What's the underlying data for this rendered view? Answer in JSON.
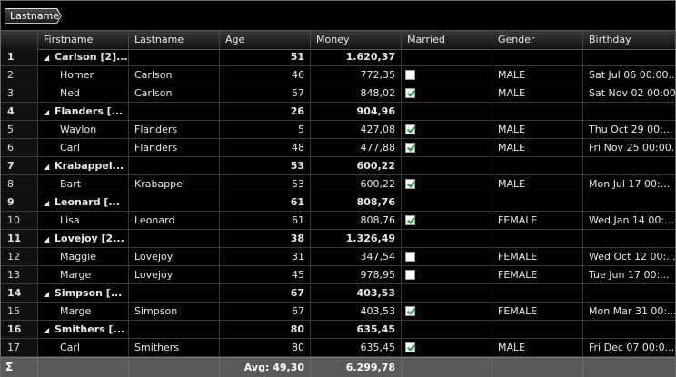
{
  "group_panel": {
    "chip_label": "Lastname"
  },
  "columns": [
    "Firstname",
    "Lastname",
    "Age",
    "Money",
    "Married",
    "Gender",
    "Birthday"
  ],
  "rows": [
    {
      "n": "1",
      "type": "group",
      "label": "Carlson [2]...",
      "age": "51",
      "money": "1.620,37"
    },
    {
      "n": "2",
      "type": "data",
      "first": "Homer",
      "last": "Carlson",
      "age": "46",
      "money": "772,35",
      "married": false,
      "gender": "MALE",
      "birthday": "Sat Jul 06 00:00..."
    },
    {
      "n": "3",
      "type": "data",
      "first": "Ned",
      "last": "Carlson",
      "age": "57",
      "money": "848,02",
      "married": true,
      "gender": "MALE",
      "birthday": "Sat Nov 02 00:00..."
    },
    {
      "n": "4",
      "type": "group",
      "label": "Flanders [...",
      "age": "26",
      "money": "904,96"
    },
    {
      "n": "5",
      "type": "data",
      "first": "Waylon",
      "last": "Flanders",
      "age": "5",
      "money": "427,08",
      "married": true,
      "gender": "MALE",
      "birthday": "Thu Oct 29 00:..."
    },
    {
      "n": "6",
      "type": "data",
      "first": "Carl",
      "last": "Flanders",
      "age": "48",
      "money": "477,88",
      "married": true,
      "gender": "MALE",
      "birthday": "Fri Nov 25 00:00..."
    },
    {
      "n": "7",
      "type": "group",
      "label": "Krabappel...",
      "age": "53",
      "money": "600,22"
    },
    {
      "n": "8",
      "type": "data",
      "first": "Bart",
      "last": "Krabappel",
      "age": "53",
      "money": "600,22",
      "married": true,
      "gender": "MALE",
      "birthday": "Mon Jul 17 00:..."
    },
    {
      "n": "9",
      "type": "group",
      "label": "Leonard [...",
      "age": "61",
      "money": "808,76"
    },
    {
      "n": "10",
      "type": "data",
      "first": "Lisa",
      "last": "Leonard",
      "age": "61",
      "money": "808,76",
      "married": true,
      "gender": "FEMALE",
      "birthday": "Wed Jan 14 00:..."
    },
    {
      "n": "11",
      "type": "group",
      "label": "Lovejoy [2...",
      "age": "38",
      "money": "1.326,49"
    },
    {
      "n": "12",
      "type": "data",
      "first": "Maggie",
      "last": "Lovejoy",
      "age": "31",
      "money": "347,54",
      "married": false,
      "gender": "FEMALE",
      "birthday": "Wed Oct 12 00:..."
    },
    {
      "n": "13",
      "type": "data",
      "first": "Marge",
      "last": "Lovejoy",
      "age": "45",
      "money": "978,95",
      "married": false,
      "gender": "FEMALE",
      "birthday": "Tue Jun 17 00:..."
    },
    {
      "n": "14",
      "type": "group",
      "label": "Simpson [...",
      "age": "67",
      "money": "403,53"
    },
    {
      "n": "15",
      "type": "data",
      "first": "Marge",
      "last": "Simpson",
      "age": "67",
      "money": "403,53",
      "married": true,
      "gender": "FEMALE",
      "birthday": "Mon Mar 31 00:..."
    },
    {
      "n": "16",
      "type": "group",
      "label": "Smithers [...",
      "age": "80",
      "money": "635,45"
    },
    {
      "n": "17",
      "type": "data",
      "first": "Carl",
      "last": "Smithers",
      "age": "80",
      "money": "635,45",
      "married": true,
      "gender": "MALE",
      "birthday": "Fri Dec 07 00:0..."
    }
  ],
  "footer": {
    "sigma": "Σ",
    "age_summary": "Avg: 49,30",
    "money_summary": "6.299,78"
  },
  "icons": {
    "collapse": "triangle-down-icon",
    "checkbox_checked_color": "#1c9a3c"
  }
}
